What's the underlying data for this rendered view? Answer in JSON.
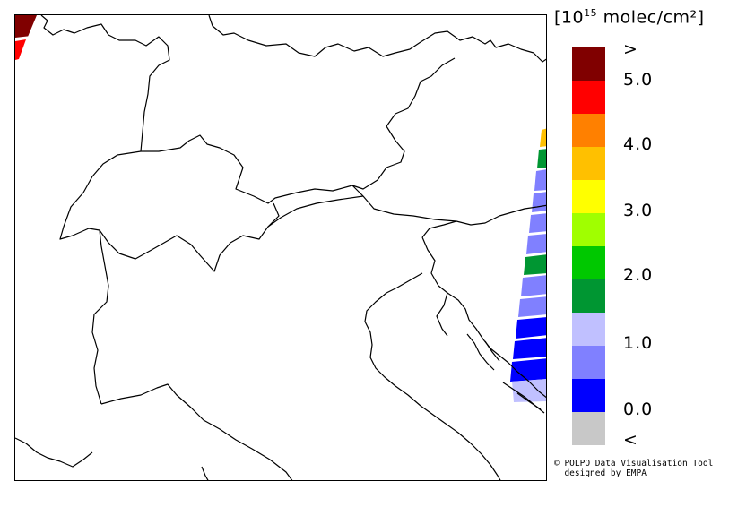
{
  "legend": {
    "unit_open": "[10",
    "unit_exp": "15",
    "unit_rest": " molec/cm²]",
    "colors": [
      "#800000",
      "#ff0000",
      "#ff8000",
      "#ffc000",
      "#ffff00",
      "#a0ff00",
      "#00c800",
      "#009632",
      "#c0c0ff",
      "#8080ff",
      "#0000ff",
      "#c8c8c8"
    ],
    "labels": [
      {
        "text": ">",
        "name": "legend-label-above-max"
      },
      {
        "text": "5.0",
        "name": "legend-label-5-0"
      },
      {
        "text": "4.0",
        "name": "legend-label-4-0"
      },
      {
        "text": "3.0",
        "name": "legend-label-3-0"
      },
      {
        "text": "2.0",
        "name": "legend-label-2-0"
      },
      {
        "text": "1.0",
        "name": "legend-label-1-0"
      },
      {
        "text": "0.0",
        "name": "legend-label-0-0"
      },
      {
        "text": "<",
        "name": "legend-label-below-min"
      }
    ]
  },
  "credit": {
    "line1": "© POLPO Data Visualisation Tool",
    "line2": "  designed by EMPA"
  }
}
